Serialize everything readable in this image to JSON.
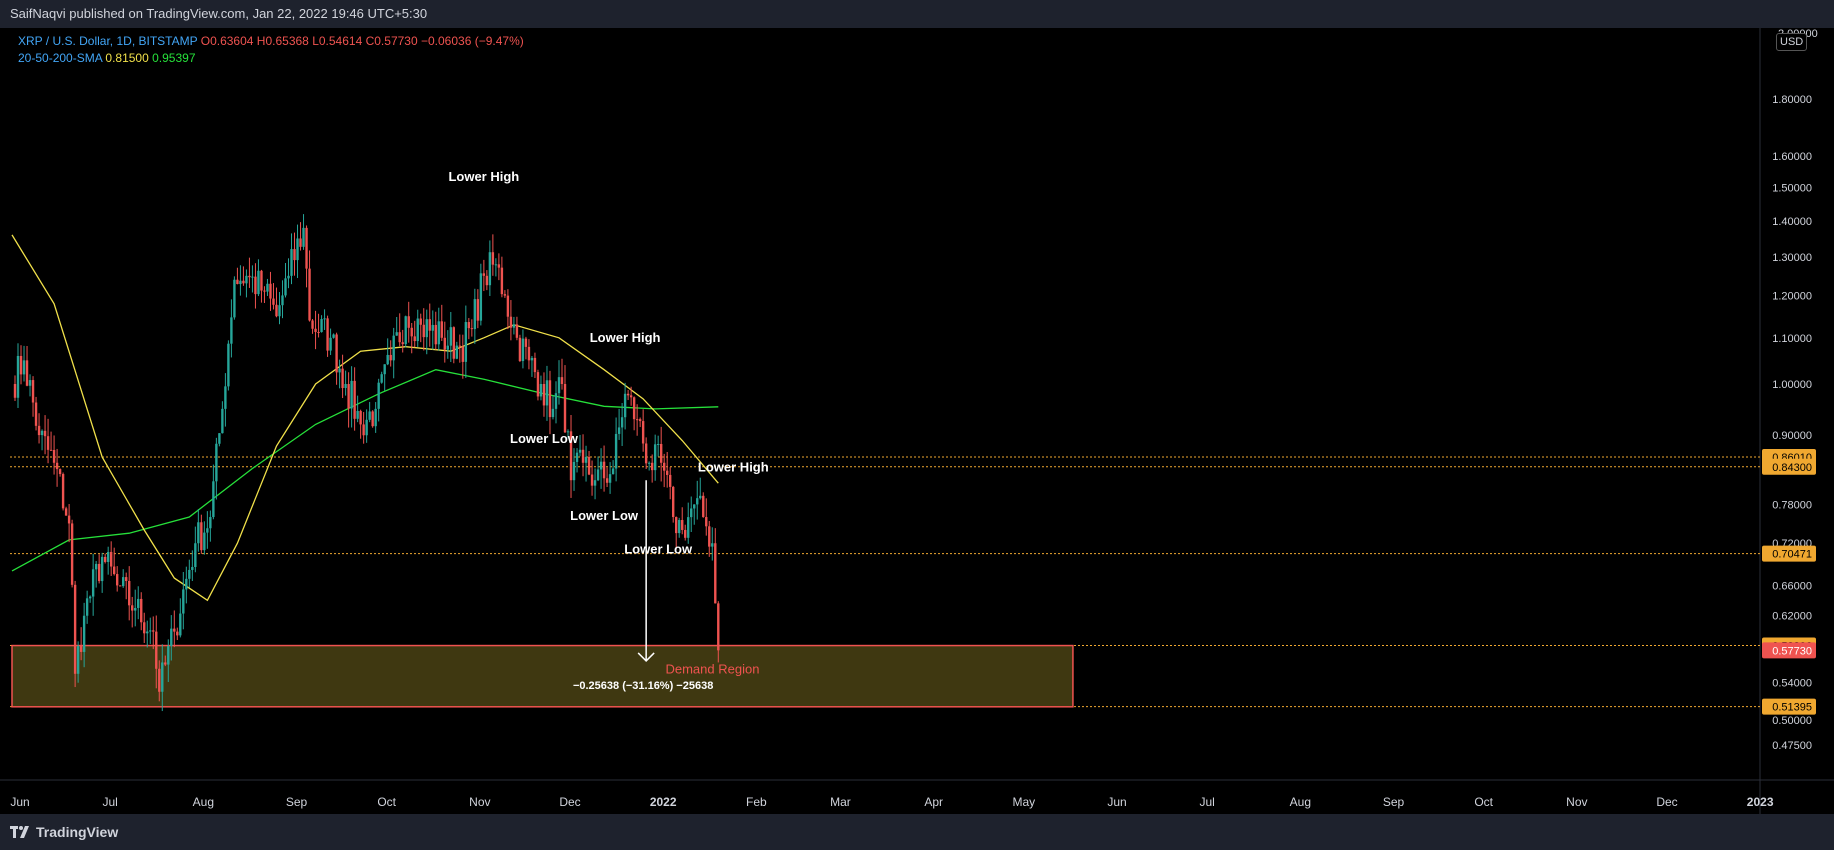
{
  "header": {
    "published_text": "SaifNaqvi published on TradingView.com, Jan 22, 2022 19:46 UTC+5:30"
  },
  "legend": {
    "symbol": "XRP / U.S. Dollar, 1D, BITSTAMP",
    "open": "O0.63604",
    "high": "H0.65368",
    "low": "L0.54614",
    "close": "C0.57730",
    "change": "−0.06036 (−9.47%)",
    "sma_label": "20-50-200-SMA",
    "sma50": "0.81500",
    "sma200": "0.95397"
  },
  "price_axis": {
    "currency": "USD",
    "corner_label": "2.00000",
    "ticks": [
      {
        "value": 1.8,
        "label": "1.80000"
      },
      {
        "value": 1.6,
        "label": "1.60000"
      },
      {
        "value": 1.5,
        "label": "1.50000"
      },
      {
        "value": 1.4,
        "label": "1.40000"
      },
      {
        "value": 1.3,
        "label": "1.30000"
      },
      {
        "value": 1.2,
        "label": "1.20000"
      },
      {
        "value": 1.1,
        "label": "1.10000"
      },
      {
        "value": 1.0,
        "label": "1.00000"
      },
      {
        "value": 0.9,
        "label": "0.90000"
      },
      {
        "value": 0.78,
        "label": "0.78000"
      },
      {
        "value": 0.72,
        "label": "0.72000"
      },
      {
        "value": 0.66,
        "label": "0.66000"
      },
      {
        "value": 0.62,
        "label": "0.62000"
      },
      {
        "value": 0.54,
        "label": "0.54000"
      },
      {
        "value": 0.5,
        "label": "0.50000"
      },
      {
        "value": 0.475,
        "label": "0.47500"
      }
    ],
    "badges": [
      {
        "value": 0.8601,
        "label": "0.86010",
        "color": "#f0a830",
        "text_color": "#000000"
      },
      {
        "value": 0.843,
        "label": "0.84300",
        "color": "#f0a830",
        "text_color": "#000000"
      },
      {
        "value": 0.70471,
        "label": "0.70471",
        "color": "#f0a830",
        "text_color": "#000000"
      },
      {
        "value": 0.58306,
        "label": "0.58306",
        "color": "#f0a830",
        "text_color": "#000000"
      },
      {
        "value": 0.5773,
        "label": "0.57730",
        "color": "#ef5350",
        "text_color": "#ffffff"
      },
      {
        "value": 0.51395,
        "label": "0.51395",
        "color": "#f0a830",
        "text_color": "#000000"
      }
    ]
  },
  "time_axis": {
    "labels": [
      "Jun",
      "Jul",
      "Aug",
      "Sep",
      "Oct",
      "Nov",
      "Dec",
      "2022",
      "Feb",
      "Mar",
      "Apr",
      "May",
      "Jun",
      "Jul",
      "Aug",
      "Sep",
      "Oct",
      "Nov",
      "Dec",
      "2023"
    ]
  },
  "annotations": [
    {
      "text": "Lower High",
      "date": "2021-11-05",
      "price": 1.52
    },
    {
      "text": "Lower High",
      "date": "2021-12-22",
      "price": 1.09
    },
    {
      "text": "Lower High",
      "date": "2022-01-27",
      "price": 0.835
    },
    {
      "text": "Lower Low",
      "date": "2021-11-25",
      "price": 0.885
    },
    {
      "text": "Lower Low",
      "date": "2021-12-15",
      "price": 0.755
    },
    {
      "text": "Lower Low",
      "date": "2022-01-02",
      "price": 0.705
    }
  ],
  "measure": {
    "label": "−0.25638 (−31.16%) −25638",
    "start_price": 0.82,
    "end_price": 0.5648,
    "date": "2021-12-29"
  },
  "demand_region": {
    "label": "Demand Region",
    "top": 0.583,
    "bottom": 0.5138,
    "start_date": "2021-06-01",
    "end_date": "2022-05-20"
  },
  "horizontal_levels": [
    0.8601,
    0.843,
    0.70471,
    0.58306,
    0.51395
  ],
  "footer": {
    "brand": "TradingView"
  },
  "colors": {
    "up": "#26a69a",
    "down": "#ef5350",
    "sma50": "#f0e04a",
    "sma200": "#26e03a",
    "level": "#f0a830",
    "demand_fill": "#4a4214",
    "demand_border": "#ef5350"
  },
  "chart_data": {
    "type": "candlestick",
    "symbol": "XRP / U.S. Dollar",
    "interval": "1D",
    "yscale": "log",
    "ylim": [
      0.45,
      2.0
    ],
    "xlim": [
      "2021-06-01",
      "2023-01-01"
    ],
    "key_points": [
      {
        "date": "2021-06-01",
        "price": 1.0
      },
      {
        "date": "2021-06-05",
        "price": 1.05
      },
      {
        "date": "2021-06-10",
        "price": 0.9
      },
      {
        "date": "2021-06-15",
        "price": 0.85
      },
      {
        "date": "2021-06-20",
        "price": 0.75
      },
      {
        "date": "2021-06-22",
        "price": 0.55
      },
      {
        "date": "2021-06-25",
        "price": 0.62
      },
      {
        "date": "2021-07-01",
        "price": 0.7
      },
      {
        "date": "2021-07-06",
        "price": 0.66
      },
      {
        "date": "2021-07-12",
        "price": 0.63
      },
      {
        "date": "2021-07-18",
        "price": 0.6
      },
      {
        "date": "2021-07-20",
        "price": 0.53
      },
      {
        "date": "2021-07-25",
        "price": 0.6
      },
      {
        "date": "2021-08-01",
        "price": 0.72
      },
      {
        "date": "2021-08-06",
        "price": 0.76
      },
      {
        "date": "2021-08-10",
        "price": 0.95
      },
      {
        "date": "2021-08-14",
        "price": 1.24
      },
      {
        "date": "2021-08-18",
        "price": 1.25
      },
      {
        "date": "2021-08-24",
        "price": 1.21
      },
      {
        "date": "2021-08-28",
        "price": 1.15
      },
      {
        "date": "2021-09-01",
        "price": 1.25
      },
      {
        "date": "2021-09-06",
        "price": 1.38
      },
      {
        "date": "2021-09-08",
        "price": 1.14
      },
      {
        "date": "2021-09-15",
        "price": 1.1
      },
      {
        "date": "2021-09-20",
        "price": 1.0
      },
      {
        "date": "2021-09-25",
        "price": 0.92
      },
      {
        "date": "2021-09-30",
        "price": 0.95
      },
      {
        "date": "2021-10-05",
        "price": 1.05
      },
      {
        "date": "2021-10-10",
        "price": 1.15
      },
      {
        "date": "2021-10-15",
        "price": 1.13
      },
      {
        "date": "2021-10-22",
        "price": 1.1
      },
      {
        "date": "2021-10-28",
        "price": 1.08
      },
      {
        "date": "2021-11-01",
        "price": 1.12
      },
      {
        "date": "2021-11-05",
        "price": 1.25
      },
      {
        "date": "2021-11-09",
        "price": 1.28
      },
      {
        "date": "2021-11-12",
        "price": 1.2
      },
      {
        "date": "2021-11-16",
        "price": 1.1
      },
      {
        "date": "2021-11-20",
        "price": 1.05
      },
      {
        "date": "2021-11-24",
        "price": 1.0
      },
      {
        "date": "2021-11-28",
        "price": 0.95
      },
      {
        "date": "2021-12-01",
        "price": 1.0
      },
      {
        "date": "2021-12-04",
        "price": 0.82
      },
      {
        "date": "2021-12-08",
        "price": 0.85
      },
      {
        "date": "2021-12-12",
        "price": 0.82
      },
      {
        "date": "2021-12-18",
        "price": 0.84
      },
      {
        "date": "2021-12-22",
        "price": 0.98
      },
      {
        "date": "2021-12-26",
        "price": 0.93
      },
      {
        "date": "2021-12-30",
        "price": 0.85
      },
      {
        "date": "2022-01-03",
        "price": 0.85
      },
      {
        "date": "2022-01-07",
        "price": 0.76
      },
      {
        "date": "2022-01-10",
        "price": 0.74
      },
      {
        "date": "2022-01-14",
        "price": 0.78
      },
      {
        "date": "2022-01-17",
        "price": 0.76
      },
      {
        "date": "2022-01-20",
        "price": 0.72
      },
      {
        "date": "2022-01-21",
        "price": 0.636
      },
      {
        "date": "2022-01-22",
        "price": 0.5773
      }
    ],
    "sma50_points": [
      {
        "date": "2021-06-01",
        "price": 1.36
      },
      {
        "date": "2021-06-15",
        "price": 1.18
      },
      {
        "date": "2021-07-01",
        "price": 0.86
      },
      {
        "date": "2021-07-15",
        "price": 0.74
      },
      {
        "date": "2021-07-25",
        "price": 0.67
      },
      {
        "date": "2021-08-05",
        "price": 0.64
      },
      {
        "date": "2021-08-15",
        "price": 0.72
      },
      {
        "date": "2021-08-28",
        "price": 0.88
      },
      {
        "date": "2021-09-10",
        "price": 1.0
      },
      {
        "date": "2021-09-25",
        "price": 1.07
      },
      {
        "date": "2021-10-10",
        "price": 1.08
      },
      {
        "date": "2021-10-25",
        "price": 1.07
      },
      {
        "date": "2021-11-05",
        "price": 1.1
      },
      {
        "date": "2021-11-15",
        "price": 1.13
      },
      {
        "date": "2021-11-30",
        "price": 1.1
      },
      {
        "date": "2021-12-15",
        "price": 1.03
      },
      {
        "date": "2021-12-28",
        "price": 0.97
      },
      {
        "date": "2022-01-10",
        "price": 0.89
      },
      {
        "date": "2022-01-22",
        "price": 0.815
      }
    ],
    "sma200_points": [
      {
        "date": "2021-06-01",
        "price": 0.68
      },
      {
        "date": "2021-06-20",
        "price": 0.725
      },
      {
        "date": "2021-07-10",
        "price": 0.735
      },
      {
        "date": "2021-07-30",
        "price": 0.76
      },
      {
        "date": "2021-08-20",
        "price": 0.84
      },
      {
        "date": "2021-09-10",
        "price": 0.92
      },
      {
        "date": "2021-10-01",
        "price": 0.98
      },
      {
        "date": "2021-10-20",
        "price": 1.03
      },
      {
        "date": "2021-11-05",
        "price": 1.01
      },
      {
        "date": "2021-11-25",
        "price": 0.98
      },
      {
        "date": "2021-12-15",
        "price": 0.955
      },
      {
        "date": "2022-01-01",
        "price": 0.95
      },
      {
        "date": "2022-01-22",
        "price": 0.954
      }
    ]
  }
}
